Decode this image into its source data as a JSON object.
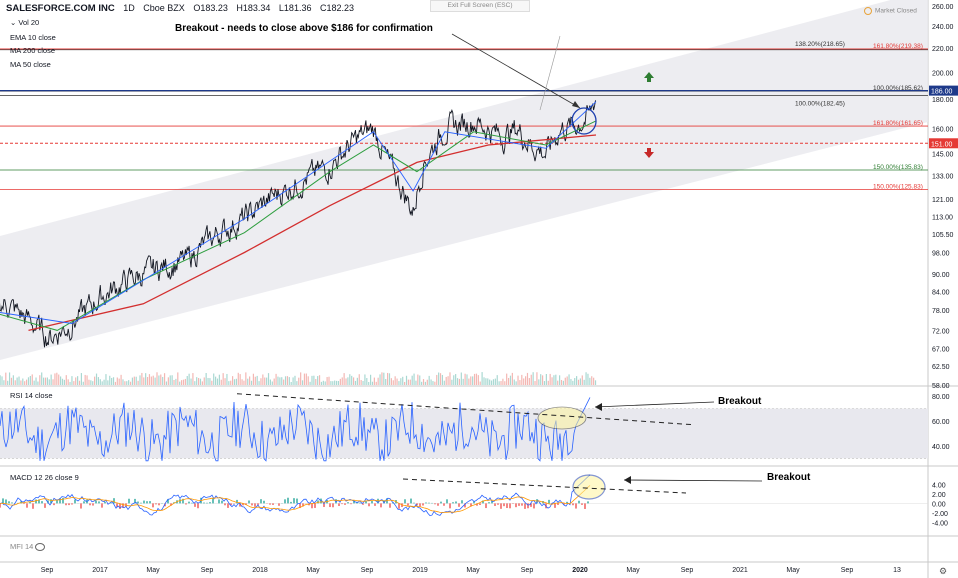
{
  "header": {
    "symbol": "SALESFORCE.COM INC",
    "interval": "1D",
    "exchange": "Cboe BZX",
    "open": "O183.23",
    "high": "H183.34",
    "low": "L181.36",
    "close": "C182.23"
  },
  "exit_fullscreen": "Exit Full Screen (ESC)",
  "market_status": "Market Closed",
  "indicators": {
    "vol": "Vol 20",
    "ema10": "EMA 10 close",
    "ma200": "MA 200 close",
    "ma50": "MA 50 close",
    "rsi": "RSI 14 close",
    "macd": "MACD 12 26 close 9",
    "mfi": "MFI 14"
  },
  "annotations": {
    "main": "Breakout - needs to close above $186 for confirmation",
    "rsi": "Breakout",
    "macd": "Breakout"
  },
  "colors": {
    "price": "#131722",
    "ema": "#2962ff",
    "ma200": "#d32f2f",
    "ma50": "#2e9e3f",
    "channel": "#e9e9ee",
    "fib_red": "#e53935",
    "fib_green": "#2e7d32",
    "rsi": "#2962ff",
    "macd": "#2962ff",
    "signal": "#ff9800",
    "hist_pos": "#26a69a",
    "hist_neg": "#ef5350",
    "highlight": "#fff59d"
  },
  "chart_data": [
    {
      "type": "line",
      "name": "price",
      "scale": "log",
      "ylim": [
        58,
        260
      ],
      "y_ticks": [
        "260.00",
        "240.00",
        "220.00",
        "200.00",
        "186.00",
        "180.00",
        "160.00",
        "151.00",
        "145.00",
        "133.00",
        "121.00",
        "113.00",
        "105.50",
        "98.00",
        "90.00",
        "84.00",
        "78.00",
        "72.00",
        "67.00",
        "62.50",
        "58.00"
      ],
      "x_ticks": [
        "Sep",
        "2017",
        "May",
        "Sep",
        "2018",
        "May",
        "Sep",
        "2019",
        "May",
        "Sep",
        "2020",
        "May",
        "Sep",
        "2021",
        "May",
        "Sep",
        "13"
      ],
      "price_path": [
        [
          "2016-07-01",
          79
        ],
        [
          "2016-08-15",
          80
        ],
        [
          "2016-10-01",
          75
        ],
        [
          "2016-11-15",
          70
        ],
        [
          "2017-01-01",
          74
        ],
        [
          "2017-03-01",
          82
        ],
        [
          "2017-05-01",
          88
        ],
        [
          "2017-07-01",
          92
        ],
        [
          "2017-09-01",
          95
        ],
        [
          "2017-11-01",
          105
        ],
        [
          "2018-01-01",
          112
        ],
        [
          "2018-03-01",
          122
        ],
        [
          "2018-05-01",
          130
        ],
        [
          "2018-07-01",
          138
        ],
        [
          "2018-09-01",
          155
        ],
        [
          "2018-10-01",
          160
        ],
        [
          "2018-11-01",
          140
        ],
        [
          "2018-12-24",
          115
        ],
        [
          "2019-01-15",
          140
        ],
        [
          "2019-03-01",
          160
        ],
        [
          "2019-05-01",
          165
        ],
        [
          "2019-07-01",
          155
        ],
        [
          "2019-08-01",
          160
        ],
        [
          "2019-09-01",
          150
        ],
        [
          "2019-10-01",
          145
        ],
        [
          "2019-11-01",
          160
        ],
        [
          "2019-12-01",
          162
        ],
        [
          "2020-01-01",
          168
        ],
        [
          "2020-01-15",
          182
        ]
      ],
      "ema10_path": [
        [
          "2016-07-01",
          78
        ],
        [
          "2017-01-01",
          74
        ],
        [
          "2018-01-01",
          112
        ],
        [
          "2018-10-01",
          158
        ],
        [
          "2018-12-24",
          125
        ],
        [
          "2019-03-01",
          158
        ],
        [
          "2019-10-01",
          148
        ],
        [
          "2020-01-15",
          178
        ]
      ],
      "ma50_path": [
        [
          "2016-07-01",
          78
        ],
        [
          "2016-12-01",
          72
        ],
        [
          "2017-06-01",
          88
        ],
        [
          "2018-01-01",
          106
        ],
        [
          "2018-07-01",
          135
        ],
        [
          "2018-10-01",
          150
        ],
        [
          "2019-01-01",
          135
        ],
        [
          "2019-05-01",
          158
        ],
        [
          "2019-10-01",
          150
        ],
        [
          "2020-01-15",
          165
        ]
      ],
      "ma200_path": [
        [
          "2016-10-01",
          72
        ],
        [
          "2017-06-01",
          80
        ],
        [
          "2018-01-01",
          98
        ],
        [
          "2018-07-01",
          118
        ],
        [
          "2019-01-01",
          140
        ],
        [
          "2019-06-01",
          150
        ],
        [
          "2020-01-15",
          156
        ]
      ],
      "fib_levels": [
        {
          "label": "138.20%(218.65)",
          "value": 218.65,
          "color": "#333333"
        },
        {
          "label": "161.80%(219.38)",
          "value": 219.38,
          "color": "#e53935"
        },
        {
          "label": "100.00%(185.62)",
          "value": 185.62,
          "color": "#333333"
        },
        {
          "label": "100.00%(182.45)",
          "value": 182.45,
          "color": "#333333"
        },
        {
          "label": "161.80%(161.65)",
          "value": 161.65,
          "color": "#e53935"
        },
        {
          "label": "150.00%(135.83)",
          "value": 135.83,
          "color": "#2e7d32"
        },
        {
          "label": "150.00%(125.83)",
          "value": 125.83,
          "color": "#e53935"
        }
      ],
      "markers": {
        "resistance": 186.0,
        "support": 151.0
      }
    },
    {
      "type": "line",
      "name": "RSI 14 close",
      "ylim": [
        27,
        85
      ],
      "y_ticks": [
        "80.00",
        "60.00",
        "40.00"
      ],
      "band": [
        30,
        70
      ]
    },
    {
      "type": "bar",
      "name": "MACD 12 26 close 9",
      "ylim": [
        -6,
        7
      ],
      "y_ticks": [
        "4.00",
        "2.00",
        "0.00",
        "-2.00",
        "-4.00"
      ]
    }
  ]
}
